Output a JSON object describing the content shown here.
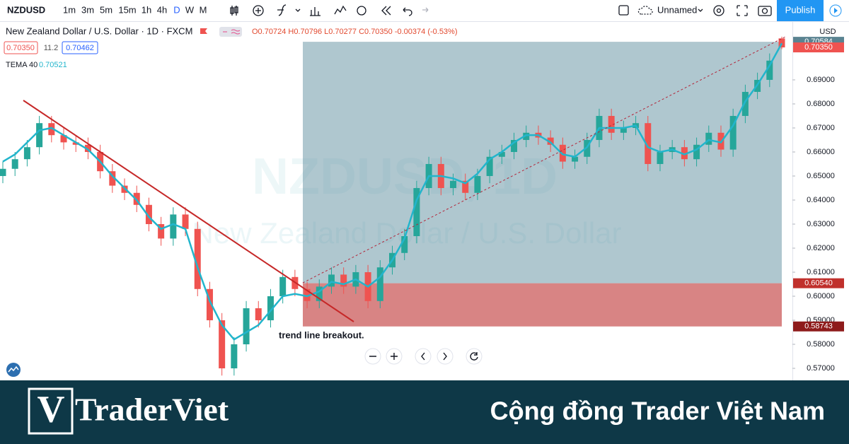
{
  "toolbar": {
    "symbol": "NZDUSD",
    "intervals": [
      "1m",
      "3m",
      "5m",
      "15m",
      "1h",
      "4h",
      "D",
      "W",
      "M"
    ],
    "active_interval": 6,
    "layout_name": "Unnamed",
    "publish": "Publish"
  },
  "legend": {
    "title": "New Zealand Dollar / U.S. Dollar · 1D · FXCM",
    "ohlc": "O0.70724 H0.70796 L0.70277 C0.70350 -0.00374 (-0.53%)",
    "bid": "0.70350",
    "spread": "11.2",
    "ask": "0.70462"
  },
  "watermark": {
    "symbol": "NZDUSD, 1D",
    "description": "New Zealand Dollar / U.S. Dollar"
  },
  "chart_data": {
    "type": "candlestick",
    "currency": "USD",
    "up_color": "#26a69a",
    "down_color": "#ef5350",
    "open": [
      0.65,
      0.653,
      0.657,
      0.662,
      0.672,
      0.667,
      0.664,
      0.663,
      0.66,
      0.652,
      0.646,
      0.643,
      0.638,
      0.63,
      0.624,
      0.634,
      0.628,
      0.603,
      0.59,
      0.57,
      0.58,
      0.595,
      0.59,
      0.6,
      0.608,
      0.603,
      0.598,
      0.604,
      0.609,
      0.604,
      0.61,
      0.598,
      0.612,
      0.618,
      0.625,
      0.645,
      0.655,
      0.645,
      0.648,
      0.643,
      0.65,
      0.658,
      0.66,
      0.665,
      0.668,
      0.666,
      0.663,
      0.656,
      0.658,
      0.665,
      0.675,
      0.668,
      0.67,
      0.672,
      0.655,
      0.66,
      0.662,
      0.657,
      0.663,
      0.668,
      0.661,
      0.675,
      0.685,
      0.69,
      0.70724
    ],
    "high": [
      0.656,
      0.66,
      0.665,
      0.675,
      0.675,
      0.67,
      0.667,
      0.666,
      0.663,
      0.655,
      0.649,
      0.646,
      0.641,
      0.633,
      0.637,
      0.637,
      0.631,
      0.606,
      0.593,
      0.583,
      0.598,
      0.598,
      0.603,
      0.611,
      0.611,
      0.606,
      0.607,
      0.612,
      0.612,
      0.613,
      0.613,
      0.615,
      0.621,
      0.628,
      0.648,
      0.658,
      0.658,
      0.651,
      0.651,
      0.653,
      0.661,
      0.663,
      0.668,
      0.671,
      0.671,
      0.669,
      0.666,
      0.661,
      0.668,
      0.678,
      0.678,
      0.673,
      0.675,
      0.675,
      0.663,
      0.665,
      0.665,
      0.666,
      0.671,
      0.671,
      0.678,
      0.688,
      0.693,
      0.701,
      0.70796
    ],
    "low": [
      0.647,
      0.65,
      0.654,
      0.659,
      0.664,
      0.661,
      0.66,
      0.657,
      0.649,
      0.643,
      0.64,
      0.635,
      0.627,
      0.621,
      0.621,
      0.625,
      0.6,
      0.587,
      0.567,
      0.567,
      0.577,
      0.587,
      0.587,
      0.597,
      0.6,
      0.595,
      0.595,
      0.601,
      0.601,
      0.601,
      0.595,
      0.595,
      0.609,
      0.615,
      0.622,
      0.642,
      0.642,
      0.642,
      0.64,
      0.64,
      0.647,
      0.655,
      0.657,
      0.662,
      0.663,
      0.66,
      0.653,
      0.653,
      0.655,
      0.662,
      0.665,
      0.665,
      0.667,
      0.652,
      0.652,
      0.657,
      0.654,
      0.654,
      0.66,
      0.658,
      0.658,
      0.672,
      0.682,
      0.687,
      0.70277
    ],
    "close": [
      0.653,
      0.657,
      0.662,
      0.672,
      0.667,
      0.664,
      0.663,
      0.66,
      0.652,
      0.646,
      0.643,
      0.638,
      0.63,
      0.624,
      0.634,
      0.628,
      0.603,
      0.59,
      0.57,
      0.58,
      0.595,
      0.59,
      0.6,
      0.608,
      0.603,
      0.598,
      0.604,
      0.609,
      0.604,
      0.61,
      0.598,
      0.612,
      0.618,
      0.625,
      0.645,
      0.655,
      0.645,
      0.648,
      0.643,
      0.65,
      0.658,
      0.66,
      0.665,
      0.668,
      0.666,
      0.663,
      0.656,
      0.658,
      0.665,
      0.675,
      0.668,
      0.67,
      0.672,
      0.655,
      0.66,
      0.662,
      0.657,
      0.663,
      0.668,
      0.661,
      0.675,
      0.685,
      0.69,
      0.698,
      0.7035
    ],
    "last_close_label": "0.70350",
    "ylim": [
      0.565,
      0.7144
    ],
    "yticks": [
      {
        "value": 0.57,
        "label": "0.57000"
      },
      {
        "value": 0.58,
        "label": "0.58000"
      },
      {
        "value": 0.59,
        "label": "0.59000"
      },
      {
        "value": 0.6,
        "label": "0.60000"
      },
      {
        "value": 0.61,
        "label": "0.61000"
      },
      {
        "value": 0.62,
        "label": "0.62000"
      },
      {
        "value": 0.63,
        "label": "0.63000"
      },
      {
        "value": 0.64,
        "label": "0.64000"
      },
      {
        "value": 0.65,
        "label": "0.65000"
      },
      {
        "value": 0.66,
        "label": "0.66000"
      },
      {
        "value": 0.67,
        "label": "0.67000"
      },
      {
        "value": 0.68,
        "label": "0.68000"
      },
      {
        "value": 0.69,
        "label": "0.69000"
      }
    ],
    "indicator": {
      "name": "TEMA 40",
      "value_label": "0.70521",
      "color": "#22b5cc",
      "values": [
        0.656,
        0.659,
        0.664,
        0.669,
        0.67,
        0.667,
        0.664,
        0.661,
        0.656,
        0.65,
        0.645,
        0.64,
        0.633,
        0.628,
        0.63,
        0.628,
        0.612,
        0.598,
        0.588,
        0.582,
        0.585,
        0.588,
        0.594,
        0.6,
        0.601,
        0.6,
        0.602,
        0.606,
        0.605,
        0.607,
        0.604,
        0.608,
        0.615,
        0.624,
        0.64,
        0.65,
        0.65,
        0.649,
        0.647,
        0.651,
        0.657,
        0.66,
        0.664,
        0.667,
        0.667,
        0.664,
        0.659,
        0.658,
        0.662,
        0.67,
        0.67,
        0.67,
        0.671,
        0.662,
        0.66,
        0.661,
        0.659,
        0.661,
        0.665,
        0.664,
        0.671,
        0.681,
        0.688,
        0.696,
        0.70521
      ]
    },
    "position": {
      "target": {
        "value": 0.70584,
        "label": "0.70584"
      },
      "entry": {
        "value": 0.6054,
        "label": "0.60540"
      },
      "stop": {
        "value": 0.58743,
        "label": "0.58743"
      }
    },
    "annotation": "trend line breakout."
  },
  "footer": {
    "logo_letter": "V",
    "brand": "TraderViet",
    "tagline": "Cộng đồng Trader Việt Nam"
  }
}
